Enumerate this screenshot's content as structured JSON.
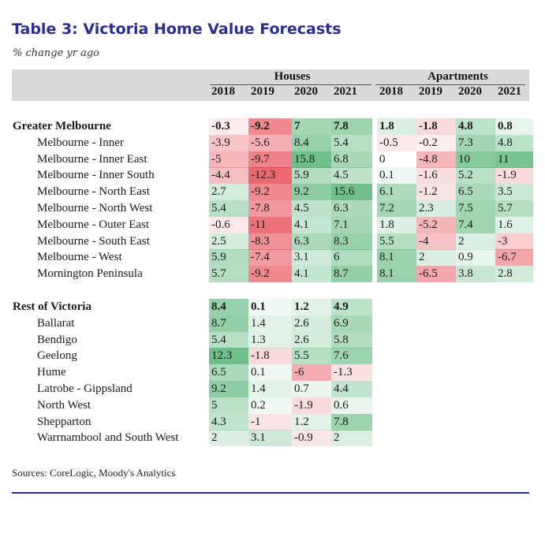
{
  "title": "Table 3: Victoria Home Value Forecasts",
  "subtitle": "% change yr ago",
  "groups": {
    "houses": "Houses",
    "apartments": "Apartments"
  },
  "years": [
    "2018",
    "2019",
    "2020",
    "2021"
  ],
  "sections": [
    {
      "name": "Greater Melbourne",
      "houses": [
        "-0.3",
        "-9.2",
        "7",
        "7.8"
      ],
      "apartments": [
        "1.8",
        "-1.8",
        "4.8",
        "0.8"
      ],
      "rows": [
        {
          "name": "Melbourne - Inner",
          "houses": [
            "-3.9",
            "-5.6",
            "8.4",
            "5.4"
          ],
          "apartments": [
            "-0.5",
            "-0.2",
            "7.3",
            "4.8"
          ]
        },
        {
          "name": "Melbourne - Inner East",
          "houses": [
            "-5",
            "-9.7",
            "15.8",
            "6.8"
          ],
          "apartments": [
            "0",
            "-4.8",
            "10",
            "11"
          ]
        },
        {
          "name": "Melbourne - Inner South",
          "houses": [
            "-4.4",
            "-12.3",
            "5.9",
            "4.5"
          ],
          "apartments": [
            "0.1",
            "-1.6",
            "5.2",
            "-1.9"
          ]
        },
        {
          "name": "Melbourne - North East",
          "houses": [
            "2.7",
            "-9.2",
            "9.2",
            "15.6"
          ],
          "apartments": [
            "6.1",
            "-1.2",
            "6.5",
            "3.5"
          ]
        },
        {
          "name": "Melbourne - North West",
          "houses": [
            "5.4",
            "-7.8",
            "4.5",
            "6.3"
          ],
          "apartments": [
            "7.2",
            "2.3",
            "7.5",
            "5.7"
          ]
        },
        {
          "name": "Melbourne - Outer East",
          "houses": [
            "-0.6",
            "-11",
            "4.1",
            "7.1"
          ],
          "apartments": [
            "1.8",
            "-5.2",
            "7.4",
            "1.6"
          ]
        },
        {
          "name": "Melbourne - South East",
          "houses": [
            "2.5",
            "-8.3",
            "6.3",
            "8.3"
          ],
          "apartments": [
            "5.5",
            "-4",
            "2",
            "-3"
          ]
        },
        {
          "name": "Melbourne - West",
          "houses": [
            "5.9",
            "-7.4",
            "3.1",
            "6"
          ],
          "apartments": [
            "8.1",
            "2",
            "0.9",
            "-6.7"
          ]
        },
        {
          "name": "Mornington Peninsula",
          "houses": [
            "5.7",
            "-9.2",
            "4.1",
            "8.7"
          ],
          "apartments": [
            "8.1",
            "-6.5",
            "3.8",
            "2.8"
          ]
        }
      ]
    },
    {
      "name": "Rest of Victoria",
      "houses": [
        "8.4",
        "0.1",
        "1.2",
        "4.9"
      ],
      "apartments": [],
      "rows": [
        {
          "name": "Ballarat",
          "houses": [
            "8.7",
            "1.4",
            "2.6",
            "6.9"
          ],
          "apartments": []
        },
        {
          "name": "Bendigo",
          "houses": [
            "5.4",
            "1.3",
            "2.6",
            "5.8"
          ],
          "apartments": []
        },
        {
          "name": "Geelong",
          "houses": [
            "12.3",
            "-1.8",
            "5.5",
            "7.6"
          ],
          "apartments": []
        },
        {
          "name": "Hume",
          "houses": [
            "6.5",
            "0.1",
            "-6",
            "-1.3"
          ],
          "apartments": []
        },
        {
          "name": "Latrobe - Gippsland",
          "houses": [
            "9.2",
            "1.4",
            "0.7",
            "4.4"
          ],
          "apartments": []
        },
        {
          "name": "North West",
          "houses": [
            "5",
            "0.2",
            "-1.9",
            "0.6"
          ],
          "apartments": []
        },
        {
          "name": "Shepparton",
          "houses": [
            "4.3",
            "-1",
            "1.2",
            "7.8"
          ],
          "apartments": []
        },
        {
          "name": "Warrnambool and South West",
          "houses": [
            "2",
            "3.1",
            "-0.9",
            "2"
          ],
          "apartments": []
        }
      ]
    }
  ],
  "source": "Sources: CoreLogic, Moody's Analytics",
  "colors": {
    "title": "#2b2d8f",
    "positive": "#4caf6e",
    "negative": "#e5424d",
    "header_band": "#d9d9d9",
    "rule": "#2b2d8f"
  }
}
